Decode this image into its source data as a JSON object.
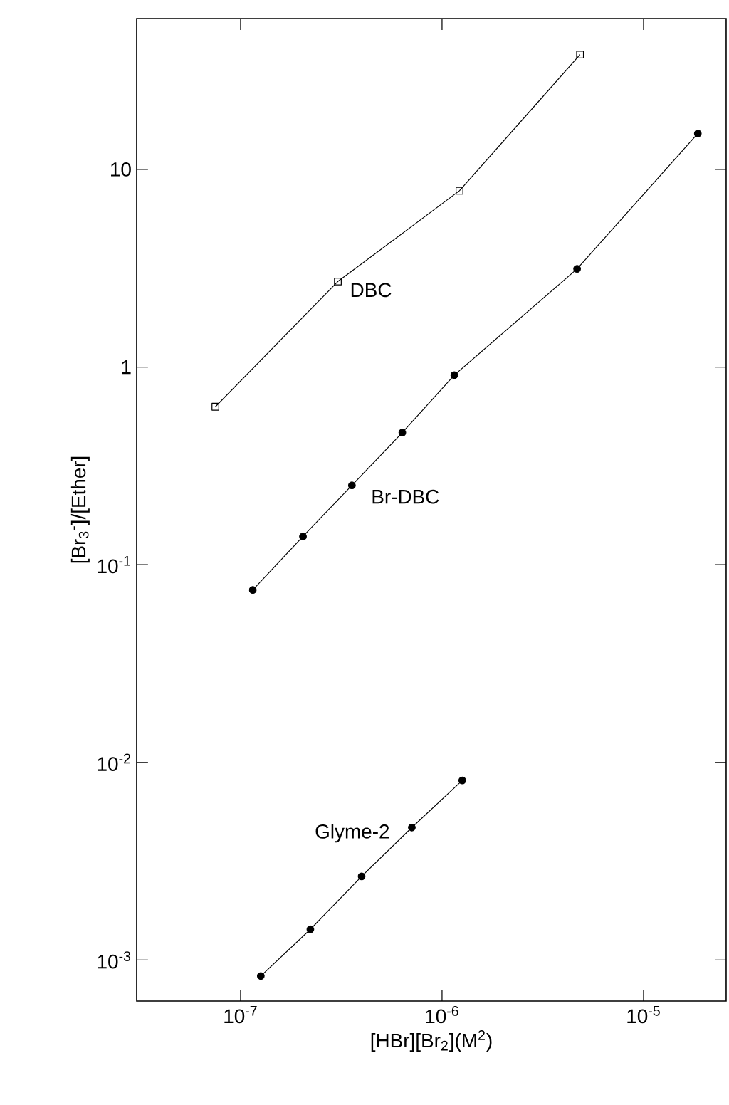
{
  "chart_data": {
    "type": "line",
    "log": "xy",
    "line_style": "solid",
    "xlabel": "[HBr][Br$_{2}$](M$^{2}$)",
    "ylabel": "[Br$_{3}$$^{-}$]/[Ether]",
    "xlim": [
      3.05e-08,
      2.57e-05
    ],
    "ylim": [
      0.00062,
      58
    ],
    "xticks": [
      {
        "value": 1e-07,
        "label": "10$^{-7}$"
      },
      {
        "value": 1e-06,
        "label": "10$^{-6}$"
      },
      {
        "value": 1e-05,
        "label": "10$^{-5}$"
      }
    ],
    "yticks": [
      {
        "value": 0.001,
        "label": "10$^{-3}$"
      },
      {
        "value": 0.01,
        "label": "10$^{-2}$"
      },
      {
        "value": 0.1,
        "label": "10$^{-1}$"
      },
      1,
      10
    ],
    "series": [
      {
        "name": "DBC",
        "color": "#000000",
        "marker": "square",
        "x": [
          7.5e-08,
          3.04e-07,
          1.22e-06,
          4.84e-06
        ],
        "values": [
          0.63,
          2.71,
          7.8,
          38.1
        ]
      },
      {
        "name": "Br-DBC",
        "color": "#000000",
        "marker": "circle",
        "x": [
          1.15e-07,
          2.04e-07,
          3.57e-07,
          6.35e-07,
          1.15e-06,
          4.68e-06,
          1.86e-05
        ],
        "values": [
          0.0745,
          0.139,
          0.252,
          0.466,
          0.91,
          3.14,
          15.2
        ]
      },
      {
        "name": "Glyme-2",
        "color": "#000000",
        "marker": "circle",
        "x": [
          1.26e-07,
          2.22e-07,
          3.99e-07,
          7.08e-07,
          1.26e-06
        ],
        "values": [
          0.00083,
          0.00143,
          0.00265,
          0.00468,
          0.0081
        ]
      }
    ]
  }
}
